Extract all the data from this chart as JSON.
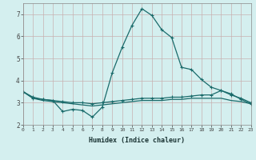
{
  "xlabel": "Humidex (Indice chaleur)",
  "ylabel": "",
  "background_color": "#d4efef",
  "grid_color": "#c8b0b0",
  "line_color": "#1a6b6b",
  "xlim": [
    0,
    23
  ],
  "ylim": [
    2,
    7.5
  ],
  "yticks": [
    2,
    3,
    4,
    5,
    6,
    7
  ],
  "xticks": [
    0,
    1,
    2,
    3,
    4,
    5,
    6,
    7,
    8,
    9,
    10,
    11,
    12,
    13,
    14,
    15,
    16,
    17,
    18,
    19,
    20,
    21,
    22,
    23
  ],
  "series1": {
    "x": [
      0,
      1,
      2,
      3,
      4,
      5,
      6,
      7,
      8,
      9,
      10,
      11,
      12,
      13,
      14,
      15,
      16,
      17,
      18,
      19,
      20,
      21,
      22,
      23
    ],
    "y": [
      3.5,
      3.2,
      3.15,
      3.1,
      3.05,
      3.0,
      3.0,
      2.95,
      3.0,
      3.05,
      3.1,
      3.15,
      3.2,
      3.2,
      3.2,
      3.25,
      3.25,
      3.3,
      3.35,
      3.35,
      3.55,
      3.35,
      3.2,
      3.0
    ]
  },
  "series2": {
    "x": [
      0,
      1,
      2,
      3,
      4,
      5,
      6,
      7,
      8,
      9,
      10,
      11,
      12,
      13,
      14,
      15,
      16,
      17,
      18,
      19,
      20,
      21,
      22,
      23
    ],
    "y": [
      3.5,
      3.2,
      3.1,
      3.05,
      3.0,
      2.95,
      2.9,
      2.85,
      2.9,
      2.95,
      3.0,
      3.05,
      3.1,
      3.1,
      3.1,
      3.15,
      3.15,
      3.2,
      3.2,
      3.2,
      3.2,
      3.1,
      3.05,
      2.95
    ]
  },
  "series3": {
    "x": [
      0,
      1,
      2,
      3,
      4,
      5,
      6,
      7,
      8,
      9,
      10,
      11,
      12,
      13,
      14,
      15,
      16,
      17,
      18,
      19,
      20,
      21,
      22,
      23
    ],
    "y": [
      3.5,
      3.25,
      3.15,
      3.1,
      2.6,
      2.7,
      2.65,
      2.35,
      2.8,
      4.35,
      5.5,
      6.5,
      7.25,
      6.95,
      6.3,
      5.95,
      4.6,
      4.5,
      4.05,
      3.7,
      3.55,
      3.4,
      3.15,
      2.95
    ]
  }
}
